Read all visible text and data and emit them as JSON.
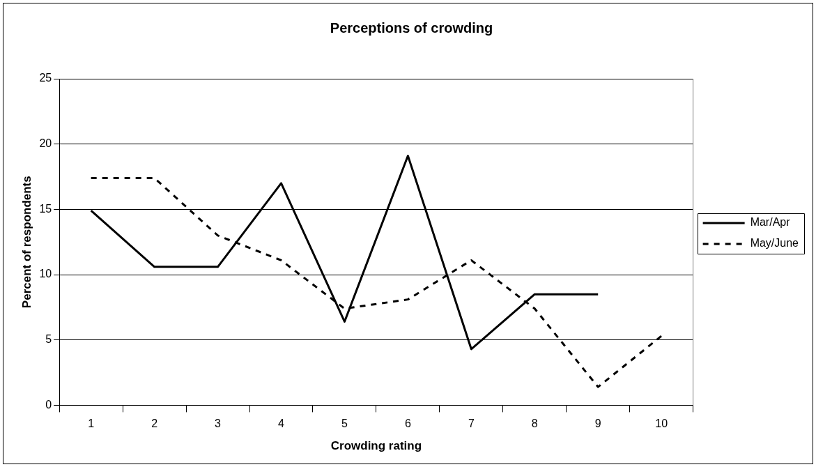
{
  "chart_data": {
    "type": "line",
    "title": "Perceptions of crowding",
    "xlabel": "Crowding rating",
    "ylabel": "Percent of respondents",
    "categories": [
      "1",
      "2",
      "3",
      "4",
      "5",
      "6",
      "7",
      "8",
      "9",
      "10"
    ],
    "series": [
      {
        "name": "Mar/Apr",
        "color": "#000000",
        "line_style": "solid",
        "values": [
          14.9,
          10.6,
          10.6,
          17.0,
          6.4,
          19.1,
          4.3,
          8.5,
          8.5,
          null
        ]
      },
      {
        "name": "May/June",
        "color": "#000000",
        "line_style": "dashed",
        "values": [
          17.4,
          17.4,
          13.0,
          11.1,
          7.4,
          8.1,
          11.1,
          7.4,
          1.4,
          5.3
        ]
      }
    ],
    "ylim": [
      0,
      25
    ],
    "yticks": [
      0,
      5,
      10,
      15,
      20,
      25
    ],
    "grid": "y",
    "legend": "right",
    "marker": "none"
  }
}
